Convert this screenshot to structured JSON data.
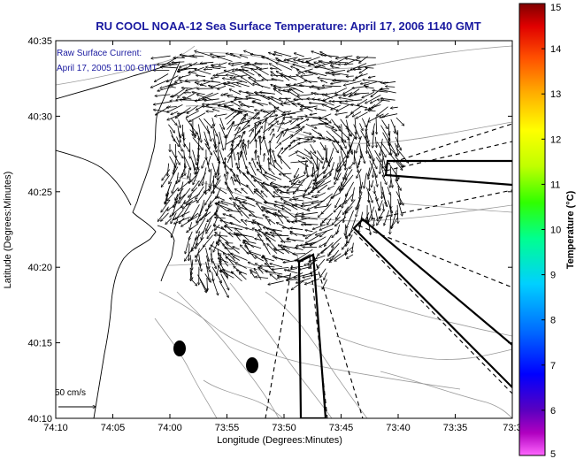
{
  "title": "RU COOL  NOAA-12  Sea Surface Temperature:  April 17, 2006 1140 GMT",
  "legend_text": {
    "line1": "Raw Surface Current:",
    "line2": "April 17, 2005 11:00 GMT"
  },
  "scale": {
    "label": "50 cm/s",
    "speed_cm_s": 50
  },
  "axes": {
    "x_label": "Longitude (Degrees:Minutes)",
    "y_label": "Latitude (Degrees:Minutes)",
    "x_ticks": [
      "74:10",
      "74:05",
      "74:00",
      "73:55",
      "73:50",
      "73:45",
      "73:40",
      "73:35",
      "73:3"
    ],
    "y_ticks": [
      "40:35",
      "40:30",
      "40:25",
      "40:20",
      "40:15",
      "40:10"
    ]
  },
  "colorbar": {
    "label": "Temperature (°C)",
    "min": 5,
    "max": 15,
    "ticks": [
      "15",
      "14",
      "13",
      "12",
      "11",
      "10",
      "9",
      "8",
      "7",
      "6",
      "5"
    ]
  },
  "colors": {
    "title": "#1a1aa0",
    "land": "#ffffff",
    "depth_contour": "#9a9a9a",
    "vector": "#000000"
  }
}
